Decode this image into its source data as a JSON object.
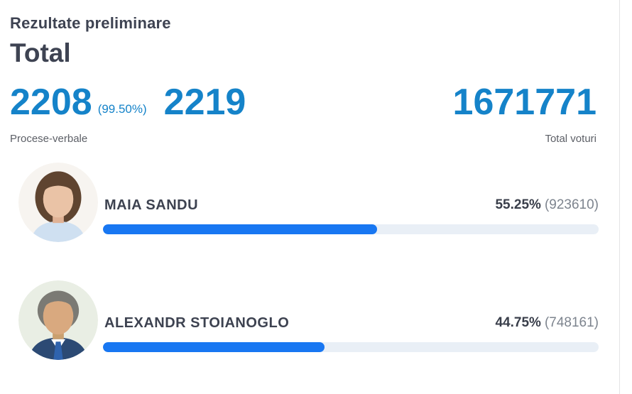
{
  "page": {
    "title": "Rezultate preliminare",
    "subtitle": "Total"
  },
  "summary": {
    "protocols_counted": "2208",
    "protocols_percent": "(99.50%)",
    "protocols_expected": "2219",
    "protocols_label": "Procese-verbale",
    "total_votes": "1671771",
    "total_votes_label": "Total voturi"
  },
  "candidates": [
    {
      "name": "MAIA SANDU",
      "percent_label": "55.25%",
      "votes_label": "(923610)",
      "percent_value": 55.25,
      "votes": 923610,
      "avatar": "maia-sandu-photo"
    },
    {
      "name": "ALEXANDR STOIANOGLO",
      "percent_label": "44.75%",
      "votes_label": "(748161)",
      "percent_value": 44.75,
      "votes": 748161,
      "avatar": "alexandr-stoianoglo-photo"
    }
  ],
  "colors": {
    "heading_dark": "#3e4352",
    "number_blue": "#1583c9",
    "bar_fill_blue": "#1877f2",
    "bar_track": "#e9eff6",
    "label_gray": "#5c5f66",
    "votes_gray": "#7d848e",
    "divider": "#e4e4e6"
  },
  "chart_data": {
    "type": "bar",
    "title": "Rezultate preliminare — Total",
    "categories": [
      "MAIA SANDU",
      "ALEXANDR STOIANOGLO"
    ],
    "values": [
      55.25,
      44.75
    ],
    "votes": [
      923610,
      748161
    ],
    "value_unit": "%",
    "xlim": [
      0,
      100
    ],
    "protocols_counted": 2208,
    "protocols_expected": 2219,
    "protocols_percent": 99.5,
    "total_votes": 1671771
  }
}
